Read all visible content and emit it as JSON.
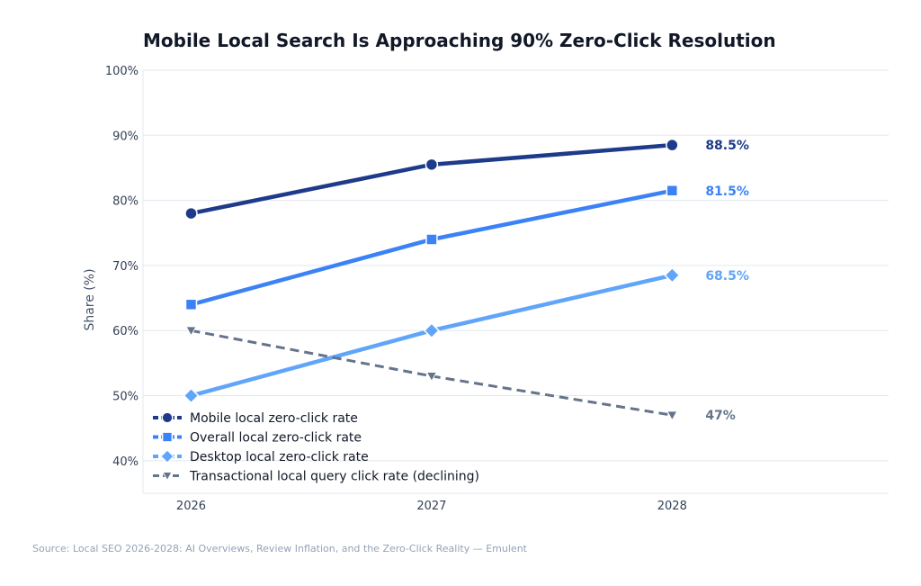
{
  "chart_data": {
    "type": "line",
    "title": "Mobile Local Search Is Approaching 90% Zero-Click Resolution",
    "xlabel": "",
    "ylabel": "Share (%)",
    "x": [
      2026,
      2027,
      2028
    ],
    "x_tick_labels": [
      "2026",
      "2027",
      "2028"
    ],
    "xlim": [
      2025.8,
      2028.9
    ],
    "ylim": [
      35,
      100
    ],
    "y_ticks": [
      40,
      50,
      60,
      70,
      80,
      90,
      100
    ],
    "y_tick_labels": [
      "40%",
      "50%",
      "60%",
      "70%",
      "80%",
      "90%",
      "100%"
    ],
    "grid": "horizontal",
    "legend_placement": "bottom-left",
    "series": [
      {
        "name": "Mobile local zero-click rate",
        "values": [
          78,
          85.5,
          88.5
        ],
        "color": "#1e3a8a",
        "marker": "circle",
        "dashed": false,
        "end_label": "88.5%"
      },
      {
        "name": "Overall local zero-click rate",
        "values": [
          64,
          74,
          81.5
        ],
        "color": "#3b82f6",
        "marker": "square",
        "dashed": false,
        "end_label": "81.5%"
      },
      {
        "name": "Desktop local zero-click rate",
        "values": [
          50,
          60,
          68.5
        ],
        "color": "#60a5fa",
        "marker": "diamond",
        "dashed": false,
        "end_label": "68.5%"
      },
      {
        "name": "Transactional local query click rate (declining)",
        "values": [
          60,
          53,
          47
        ],
        "color": "#64748b",
        "marker": "triangle-down",
        "dashed": true,
        "end_label": "47%"
      }
    ]
  },
  "source": "Source: Local SEO 2026-2028: AI Overviews, Review Inflation, and the Zero-Click Reality — Emulent"
}
